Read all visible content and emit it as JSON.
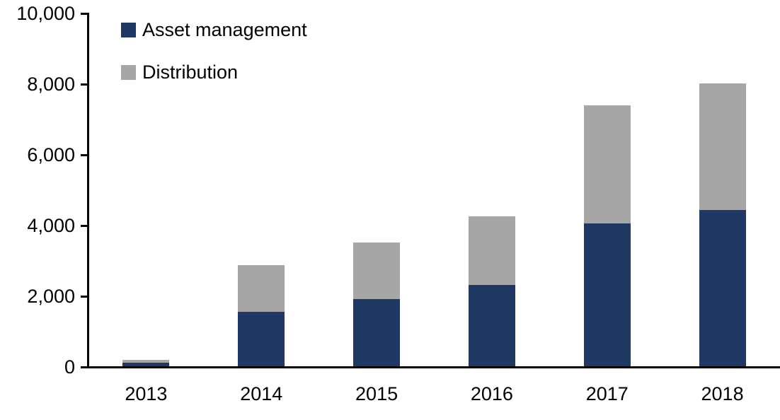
{
  "chart_data": {
    "type": "bar",
    "stacked": true,
    "title": "",
    "xlabel": "",
    "ylabel": "",
    "categories": [
      "2013",
      "2014",
      "2015",
      "2016",
      "2017",
      "2018"
    ],
    "series": [
      {
        "name": "Asset management",
        "color": "#1F3864",
        "values": [
          100,
          1550,
          1900,
          2300,
          4050,
          4420
        ]
      },
      {
        "name": "Distribution",
        "color": "#A6A6A6",
        "values": [
          80,
          1320,
          1600,
          1950,
          3330,
          3580
        ]
      }
    ],
    "totals": [
      180,
      2870,
      3500,
      4250,
      7380,
      8000
    ],
    "ylim": [
      0,
      10000
    ],
    "ytick_interval": 2000,
    "ytick_labels": [
      "0",
      "2,000",
      "4,000",
      "6,000",
      "8,000",
      "10,000"
    ],
    "grid": false,
    "legend_position": "top-left",
    "axis_color": "#000000",
    "background_color": "#FFFFFF"
  }
}
